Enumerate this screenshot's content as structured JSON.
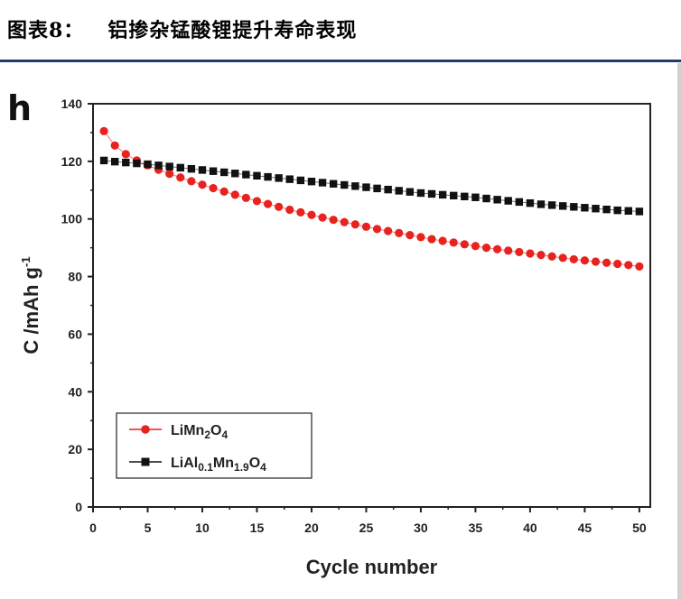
{
  "caption": {
    "number": "图表8：",
    "title": "铝掺杂锰酸锂提升寿命表现"
  },
  "colors": {
    "caption_rule": "#1f3b6a",
    "series_red": "#e8221e",
    "series_black": "#111111"
  },
  "chart_data": {
    "type": "scatter",
    "panel_label": "h",
    "xlabel": "Cycle number",
    "ylabel": "C /mAh g-1",
    "xlim": [
      0,
      51
    ],
    "ylim": [
      0,
      140
    ],
    "xticks": [
      0,
      5,
      10,
      15,
      20,
      25,
      30,
      35,
      40,
      45,
      50
    ],
    "yticks": [
      0,
      20,
      40,
      60,
      80,
      100,
      120,
      140
    ],
    "legend_position": "bottom-left",
    "series": [
      {
        "name": "LiMn2O4",
        "label_parts": [
          [
            "LiMn",
            ""
          ],
          [
            "2",
            "sub"
          ],
          [
            "O",
            ""
          ],
          [
            "4",
            "sub"
          ]
        ],
        "marker": "circle",
        "color": "#e8221e",
        "x": [
          1,
          2,
          3,
          4,
          5,
          6,
          7,
          8,
          9,
          10,
          11,
          12,
          13,
          14,
          15,
          16,
          17,
          18,
          19,
          20,
          21,
          22,
          23,
          24,
          25,
          26,
          27,
          28,
          29,
          30,
          31,
          32,
          33,
          34,
          35,
          36,
          37,
          38,
          39,
          40,
          41,
          42,
          43,
          44,
          45,
          46,
          47,
          48,
          49,
          50
        ],
        "values": [
          130.5,
          125.5,
          122.5,
          120.3,
          118.6,
          117.1,
          115.7,
          114.4,
          113.1,
          111.9,
          110.7,
          109.5,
          108.4,
          107.3,
          106.2,
          105.2,
          104.2,
          103.2,
          102.3,
          101.4,
          100.5,
          99.7,
          98.9,
          98.1,
          97.3,
          96.5,
          95.8,
          95.1,
          94.4,
          93.7,
          93.0,
          92.4,
          91.8,
          91.2,
          90.6,
          90.0,
          89.5,
          89.0,
          88.5,
          88.0,
          87.5,
          87.0,
          86.5,
          86.0,
          85.6,
          85.2,
          84.8,
          84.4,
          84.0,
          83.5
        ]
      },
      {
        "name": "LiAl0.1Mn1.9O4",
        "label_parts": [
          [
            "LiAl",
            ""
          ],
          [
            "0.1",
            "sub"
          ],
          [
            "Mn",
            ""
          ],
          [
            "1.9",
            "sub"
          ],
          [
            "O",
            ""
          ],
          [
            "4",
            "sub"
          ]
        ],
        "marker": "square",
        "color": "#111111",
        "x": [
          1,
          2,
          3,
          4,
          5,
          6,
          7,
          8,
          9,
          10,
          11,
          12,
          13,
          14,
          15,
          16,
          17,
          18,
          19,
          20,
          21,
          22,
          23,
          24,
          25,
          26,
          27,
          28,
          29,
          30,
          31,
          32,
          33,
          34,
          35,
          36,
          37,
          38,
          39,
          40,
          41,
          42,
          43,
          44,
          45,
          46,
          47,
          48,
          49,
          50
        ],
        "values": [
          120.3,
          119.9,
          119.6,
          119.3,
          119.0,
          118.6,
          118.2,
          117.8,
          117.4,
          117.0,
          116.6,
          116.2,
          115.8,
          115.4,
          115.0,
          114.6,
          114.2,
          113.8,
          113.4,
          113.0,
          112.6,
          112.2,
          111.8,
          111.4,
          111.0,
          110.6,
          110.2,
          109.8,
          109.4,
          109.0,
          108.7,
          108.4,
          108.1,
          107.8,
          107.5,
          107.1,
          106.7,
          106.3,
          105.9,
          105.5,
          105.1,
          104.8,
          104.5,
          104.2,
          103.9,
          103.6,
          103.3,
          103.0,
          102.8,
          102.6
        ]
      }
    ]
  }
}
